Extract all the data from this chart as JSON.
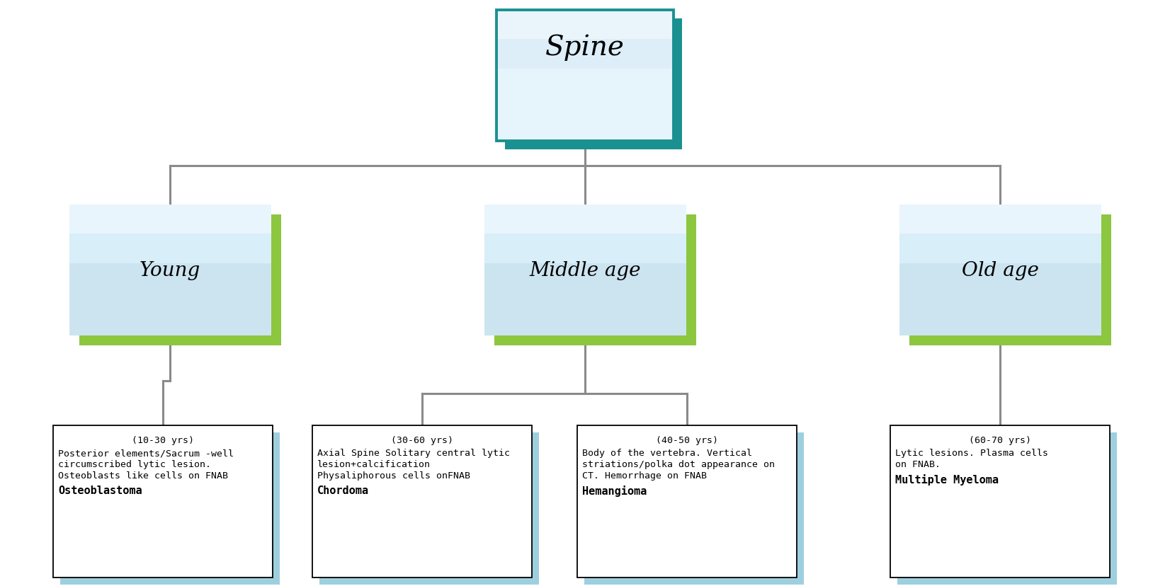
{
  "root_label": "Spine",
  "level2_labels": [
    "Young",
    "Middle age",
    "Old age"
  ],
  "level3": [
    {
      "age": "(10-30 yrs)",
      "lines": [
        "Posterior elements/Sacrum -well",
        "circumscribed lytic lesion.",
        "Osteoblasts like cells on FNAB"
      ],
      "bold": "Osteoblastoma",
      "parent_idx": 0
    },
    {
      "age": "(30-60 yrs)",
      "lines": [
        "Axial Spine Solitary central lytic",
        "lesion+calcification",
        "Physaliphorous cells onFNAB"
      ],
      "bold": "Chordoma",
      "parent_idx": 1
    },
    {
      "age": "(40-50 yrs)",
      "lines": [
        "Body of the vertebra. Vertical",
        "striations/polka dot appearance on",
        "CT. Hemorrhage on FNAB"
      ],
      "bold": "Hemangioma",
      "parent_idx": 1
    },
    {
      "age": "(60-70 yrs)",
      "lines": [
        "Lytic lesions. Plasma cells",
        "on FNAB."
      ],
      "bold": "Multiple Myeloma",
      "parent_idx": 2
    }
  ],
  "box_fill_mid": "#cce4f0",
  "box_fill_light": "#e6f4fb",
  "box_white": "#ffffff",
  "shadow_teal": "#1a9090",
  "shadow_green": "#8dc63f",
  "shadow_lightblue": "#9ecfdf",
  "connector_color": "#8a8a8a",
  "border_black": "#000000",
  "bg_color": "#ffffff"
}
